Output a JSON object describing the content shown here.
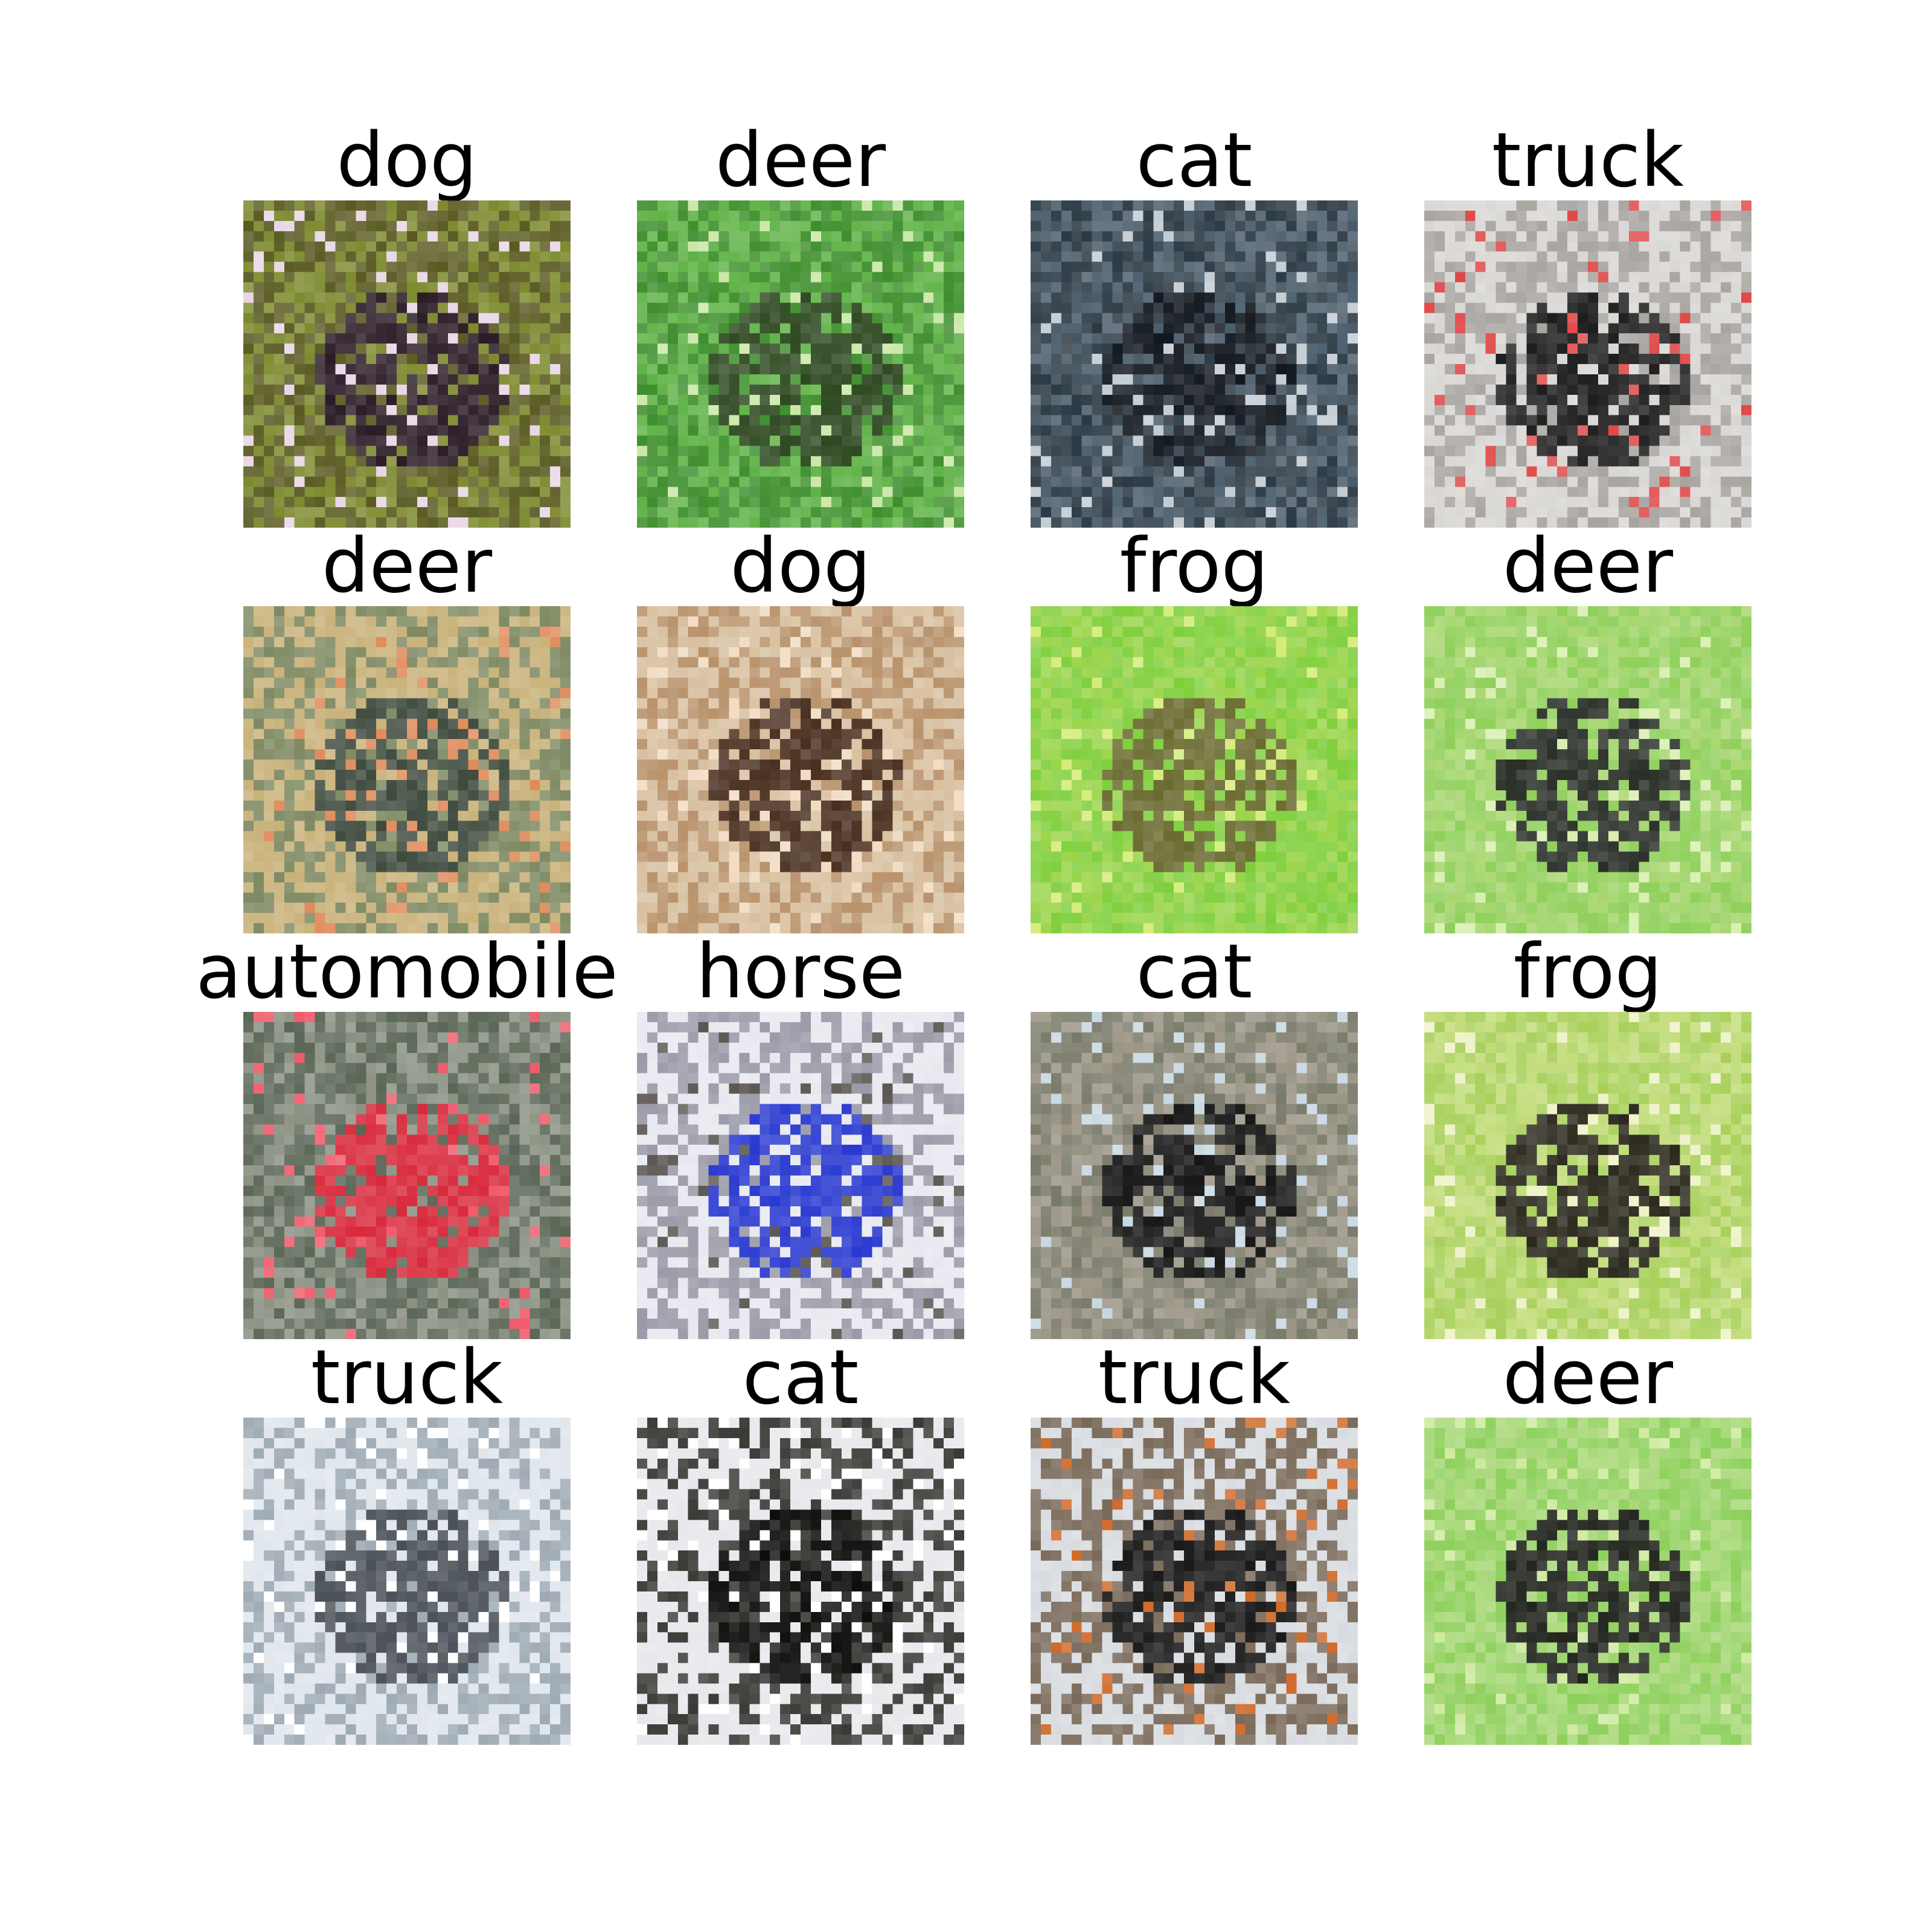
{
  "grid": {
    "cells": [
      {
        "label": "dog",
        "palette": {
          "bg": "#5a5a22",
          "mid": "#7d8a2f",
          "fg": "#2b1c26",
          "hi": "#e9d6e6"
        },
        "subject": "figure-pair"
      },
      {
        "label": "deer",
        "palette": {
          "bg": "#3f8f2e",
          "mid": "#5fb246",
          "fg": "#2f4a22",
          "hi": "#c9e7a6"
        },
        "subject": "foliage"
      },
      {
        "label": "cat",
        "palette": {
          "bg": "#2c3a45",
          "mid": "#4a5c6a",
          "fg": "#12181f",
          "hi": "#c3ccd2"
        },
        "subject": "dark-hall"
      },
      {
        "label": "truck",
        "palette": {
          "bg": "#d9d7d4",
          "mid": "#a8a4a0",
          "fg": "#1e1e1e",
          "hi": "#e04848"
        },
        "subject": "vehicle-light"
      },
      {
        "label": "deer",
        "palette": {
          "bg": "#c9b27a",
          "mid": "#7e8a63",
          "fg": "#3f4b3e",
          "hi": "#e08a5a"
        },
        "subject": "tree"
      },
      {
        "label": "dog",
        "palette": {
          "bg": "#d8c0a0",
          "mid": "#b8926a",
          "fg": "#4a3020",
          "hi": "#f1dcc2"
        },
        "subject": "tan-animal"
      },
      {
        "label": "frog",
        "palette": {
          "bg": "#7fcf3c",
          "mid": "#9ad44a",
          "fg": "#6a6a30",
          "hi": "#d4ec7a"
        },
        "subject": "green-texture"
      },
      {
        "label": "deer",
        "palette": {
          "bg": "#8fcf5a",
          "mid": "#a6d66e",
          "fg": "#2a2f28",
          "hi": "#d8efb0"
        },
        "subject": "dark-silhouette"
      },
      {
        "label": "automobile",
        "palette": {
          "bg": "#5a6656",
          "mid": "#8a9082",
          "fg": "#d82a3c",
          "hi": "#f05a6a"
        },
        "subject": "red-car"
      },
      {
        "label": "horse",
        "palette": {
          "bg": "#e8e8f0",
          "mid": "#9a9aa8",
          "fg": "#2a3ad0",
          "hi": "#5a5550"
        },
        "subject": "blue-white"
      },
      {
        "label": "cat",
        "palette": {
          "bg": "#7a7a6a",
          "mid": "#9a9485",
          "fg": "#151515",
          "hi": "#c8d8e2"
        },
        "subject": "noisy"
      },
      {
        "label": "frog",
        "palette": {
          "bg": "#a8d05a",
          "mid": "#c2dc7a",
          "fg": "#2c2a1e",
          "hi": "#eef2c8"
        },
        "subject": "frog-shape"
      },
      {
        "label": "truck",
        "palette": {
          "bg": "#dfe6ec",
          "mid": "#9eaab4",
          "fg": "#4a5058",
          "hi": "#ffffff"
        },
        "subject": "grey-vehicle"
      },
      {
        "label": "cat",
        "palette": {
          "bg": "#e6e8ec",
          "mid": "#3a3a36",
          "fg": "#0e0e0c",
          "hi": "#ffffff"
        },
        "subject": "black-white"
      },
      {
        "label": "truck",
        "palette": {
          "bg": "#d8dce0",
          "mid": "#7a6a5a",
          "fg": "#1a1a1a",
          "hi": "#d06a2a"
        },
        "subject": "dark-vehicle"
      },
      {
        "label": "deer",
        "palette": {
          "bg": "#8ed05c",
          "mid": "#a8d878",
          "fg": "#22261e",
          "hi": "#cfeaa0"
        },
        "subject": "dark-animal"
      }
    ]
  }
}
